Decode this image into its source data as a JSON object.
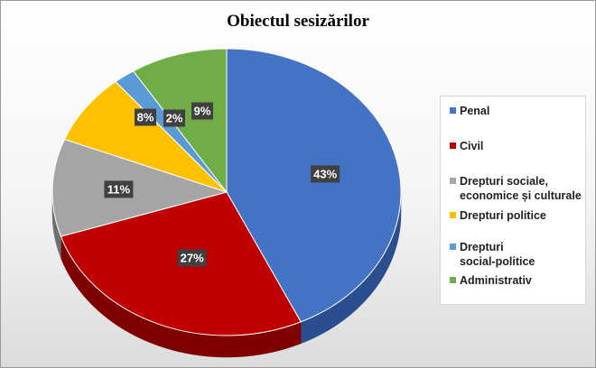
{
  "chart_data": {
    "type": "pie",
    "title": "Obiectul sesizărilor",
    "slices": [
      {
        "label": "Penal",
        "value": 43,
        "display": "43%",
        "color": "#4472C4",
        "side_color": "#2A4E8F"
      },
      {
        "label": "Civil",
        "value": 27,
        "display": "27%",
        "color": "#C00000",
        "side_color": "#7F0000"
      },
      {
        "label": "Drepturi sociale, economice și culturale",
        "value": 11,
        "display": "11%",
        "color": "#A5A5A5",
        "side_color": "#6E6E6E"
      },
      {
        "label": "Drepturi politice",
        "value": 8,
        "display": "8%",
        "color": "#FFC000",
        "side_color": "#B38600"
      },
      {
        "label": "Drepturi social-politice",
        "value": 2,
        "display": "2%",
        "color": "#5B9BD5",
        "side_color": "#3C6E9C"
      },
      {
        "label": "Administrativ",
        "value": 9,
        "display": "9%",
        "color": "#70AD47",
        "side_color": "#4A7A2C"
      }
    ],
    "legend": {
      "position": "right",
      "entries": [
        "Penal",
        "Civil",
        "Drepturi sociale,\neconomice și culturale",
        "Drepturi politice",
        "Drepturi\nsocial-politice",
        "Administrativ"
      ]
    },
    "label_style": {
      "background": "#404040",
      "text_color": "#FFFFFF"
    }
  }
}
